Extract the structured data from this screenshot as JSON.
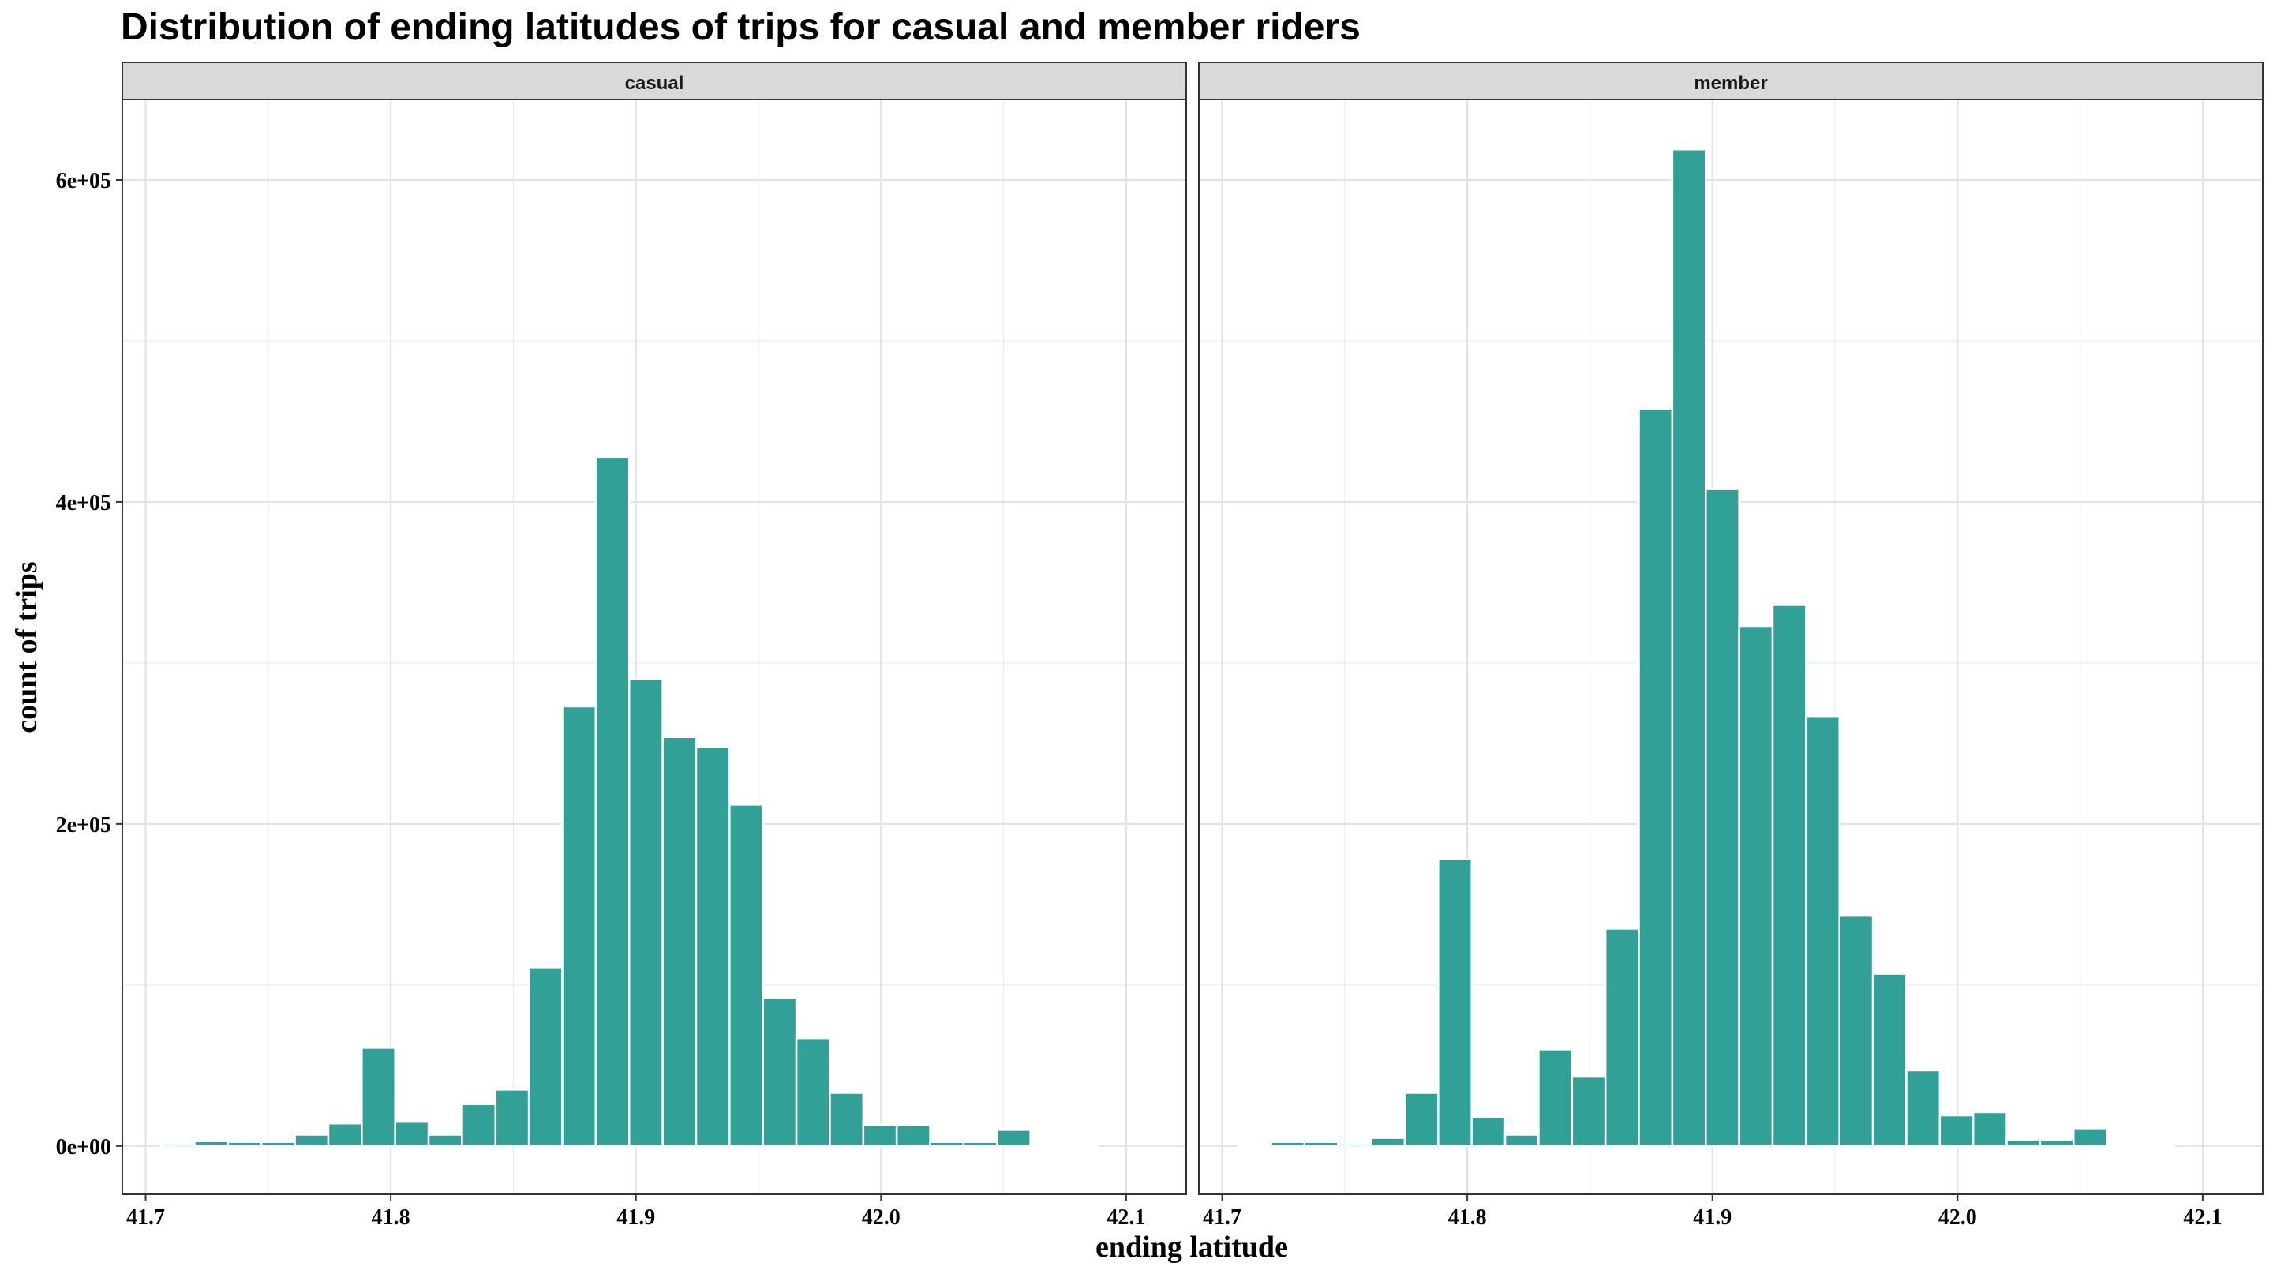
{
  "chart_data": {
    "type": "bar",
    "title": "Distribution of ending latitudes of trips for casual and member riders",
    "xlabel": "ending latitude",
    "ylabel": "count of trips",
    "x_ticks": [
      "41.7",
      "41.8",
      "41.9",
      "42.0",
      "42.1"
    ],
    "y_ticks": [
      "0e+00",
      "2e+05",
      "4e+05",
      "6e+05"
    ],
    "xlim": [
      41.6905,
      42.1245
    ],
    "ylim": [
      -30000,
      650000
    ],
    "bin_width": 0.01364,
    "bin_centers": [
      41.6995,
      41.71314,
      41.72678,
      41.74042,
      41.75406,
      41.7677,
      41.78134,
      41.79498,
      41.80862,
      41.82226,
      41.8359,
      41.84954,
      41.86318,
      41.87682,
      41.89046,
      41.9041,
      41.91774,
      41.93138,
      41.94502,
      41.95866,
      41.9723,
      41.98594,
      41.99958,
      42.01322,
      42.02686,
      42.0405,
      42.05414,
      42.06778,
      42.08142,
      42.09506
    ],
    "grid": true,
    "fill_color": "#31a197",
    "panel_border_color": "#333333",
    "strip_background": "#d9d9d9",
    "grid_color": "#ebebeb",
    "facets": [
      {
        "name": "casual",
        "values": [
          0,
          1500,
          3000,
          2500,
          2500,
          7000,
          14000,
          61000,
          15000,
          7000,
          26000,
          35000,
          111000,
          273000,
          428000,
          290000,
          254000,
          248000,
          212000,
          92000,
          67000,
          33000,
          13000,
          13000,
          2500,
          2500,
          10000,
          500,
          200,
          0
        ]
      },
      {
        "name": "member",
        "values": [
          0,
          500,
          2500,
          2500,
          1500,
          5000,
          33000,
          178000,
          18000,
          7000,
          60000,
          43000,
          135000,
          458000,
          619000,
          408000,
          323000,
          336000,
          267000,
          143000,
          107000,
          47000,
          19000,
          21000,
          4000,
          4000,
          11000,
          1000,
          200,
          0
        ]
      }
    ]
  }
}
